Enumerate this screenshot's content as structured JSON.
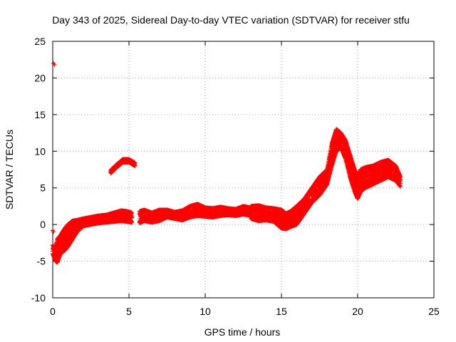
{
  "chart_data": {
    "type": "scatter",
    "title": "Day 343 of 2025, Sidereal Day-to-day VTEC variation (SDTVAR) for receiver stfu",
    "xlabel": "GPS time / hours",
    "ylabel": "SDTVAR / TECUs",
    "xlim": [
      0,
      25
    ],
    "ylim": [
      -10,
      25
    ],
    "xticks": [
      0,
      5,
      10,
      15,
      20,
      25
    ],
    "yticks": [
      -10,
      -5,
      0,
      5,
      10,
      15,
      20,
      25
    ],
    "grid": true,
    "marker": "+",
    "color": "#ff0000",
    "series": [
      {
        "name": "SDTVAR",
        "envelopes": [
          {
            "x": [
              0.0,
              0.1,
              0.2,
              0.3,
              0.5,
              0.8,
              1.0,
              1.3,
              1.6,
              2.0,
              2.5,
              3.0,
              3.5,
              4.0,
              4.5,
              4.9,
              5.2
            ],
            "ymin": [
              -4.0,
              -4.5,
              -5.0,
              -5.2,
              -4.0,
              -3.5,
              -3.0,
              -2.0,
              -1.0,
              -0.2,
              0.0,
              0.2,
              0.3,
              0.4,
              0.5,
              0.4,
              0.3
            ],
            "ymax": [
              -2.8,
              -3.2,
              -3.0,
              -2.0,
              -1.5,
              -0.5,
              0.0,
              0.5,
              0.6,
              0.8,
              1.0,
              1.2,
              1.3,
              1.6,
              1.9,
              1.8,
              1.6
            ]
          },
          {
            "x": [
              5.7,
              6.0,
              6.5,
              7.0,
              7.5,
              8.0,
              8.5,
              9.0,
              9.5,
              10.0,
              10.5,
              11.0,
              11.5,
              12.0,
              12.5,
              13.0
            ],
            "ymin": [
              0.2,
              0.5,
              0.3,
              0.5,
              1.0,
              0.8,
              0.6,
              1.0,
              1.2,
              1.1,
              1.0,
              1.2,
              1.3,
              1.2,
              1.4,
              1.2
            ],
            "ymax": [
              1.8,
              2.0,
              1.6,
              2.0,
              2.0,
              1.7,
              1.9,
              2.5,
              2.8,
              2.3,
              2.2,
              2.4,
              2.2,
              2.1,
              2.5,
              2.3
            ]
          },
          {
            "x": [
              13.0,
              13.5,
              14.0,
              14.5,
              15.0,
              15.3,
              15.6,
              16.0,
              16.5,
              17.0,
              17.5,
              18.0,
              18.3,
              18.6,
              18.9,
              19.2,
              19.5,
              19.8,
              20.0,
              20.2,
              20.5,
              21.0,
              21.5,
              22.0,
              22.5,
              22.8
            ],
            "ymin": [
              0.8,
              0.5,
              0.6,
              0.4,
              -0.5,
              -0.6,
              -0.3,
              0.0,
              1.5,
              3.0,
              4.0,
              5.5,
              8.0,
              10.0,
              10.5,
              9.0,
              6.5,
              4.5,
              3.5,
              4.5,
              5.0,
              5.5,
              6.0,
              6.5,
              6.0,
              5.2
            ],
            "ymax": [
              2.5,
              2.6,
              2.3,
              2.2,
              2.0,
              1.5,
              1.8,
              2.5,
              3.5,
              5.0,
              6.5,
              7.5,
              11.0,
              13.0,
              12.5,
              11.5,
              9.5,
              7.5,
              6.5,
              7.5,
              7.8,
              8.0,
              8.5,
              8.8,
              8.0,
              6.5
            ]
          },
          {
            "x": [
              3.8,
              4.2,
              4.6,
              5.0,
              5.4
            ],
            "ymin": [
              7.0,
              7.8,
              8.5,
              8.5,
              8.0
            ],
            "ymax": [
              7.4,
              8.2,
              8.9,
              8.9,
              8.4
            ]
          }
        ],
        "isolated_points": [
          {
            "x": 0.05,
            "y": 22.0
          },
          {
            "x": 0.12,
            "y": 21.8
          },
          {
            "x": 0.0,
            "y": -0.8
          },
          {
            "x": 0.05,
            "y": -1.0
          }
        ]
      }
    ]
  }
}
